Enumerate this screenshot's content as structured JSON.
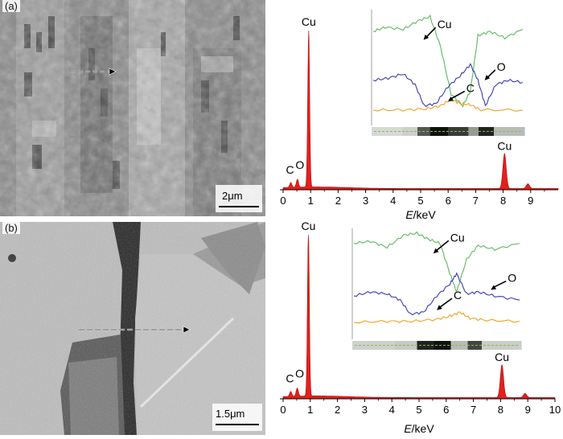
{
  "panels": [
    {
      "label": "(a)",
      "scale_bar": "2μm",
      "chart_data": {
        "type": "area",
        "xlabel": "E/keV",
        "xlim": [
          0,
          10
        ],
        "x_ticks": [
          "0",
          "1",
          "2",
          "3",
          "4",
          "5",
          "6",
          "7",
          "8",
          "9"
        ],
        "series": [
          {
            "peaks": [
              {
                "x": 0.28,
                "height": 0.03
              },
              {
                "x": 0.52,
                "height": 0.05
              },
              {
                "x": 0.93,
                "height": 1.0
              },
              {
                "x": 8.05,
                "height": 0.22
              },
              {
                "x": 8.9,
                "height": 0.03
              }
            ]
          }
        ],
        "peak_labels": [
          {
            "text": "Cu",
            "x": 0.93
          },
          {
            "text": "C",
            "x": 0.28
          },
          {
            "text": "O",
            "x": 0.52
          },
          {
            "text": "Cu",
            "x": 8.05
          }
        ],
        "inset": {
          "lines": [
            {
              "color": "#5cb85c",
              "element": "Cu"
            },
            {
              "color": "#3a3ab0",
              "element": "O"
            },
            {
              "color": "#f0a020",
              "element": "C"
            }
          ],
          "labels": [
            "Cu",
            "O",
            "C"
          ]
        }
      }
    },
    {
      "label": "(b)",
      "scale_bar": "1.5μm",
      "chart_data": {
        "type": "area",
        "xlabel": "E/keV",
        "xlim": [
          0,
          10
        ],
        "x_ticks": [
          "0",
          "1",
          "2",
          "3",
          "4",
          "5",
          "6",
          "7",
          "8",
          "9",
          "10"
        ],
        "series": [
          {
            "peaks": [
              {
                "x": 0.28,
                "height": 0.03
              },
              {
                "x": 0.52,
                "height": 0.05
              },
              {
                "x": 0.93,
                "height": 1.0
              },
              {
                "x": 8.05,
                "height": 0.2
              },
              {
                "x": 8.9,
                "height": 0.025
              }
            ]
          }
        ],
        "peak_labels": [
          {
            "text": "Cu",
            "x": 0.93
          },
          {
            "text": "C",
            "x": 0.28
          },
          {
            "text": "O",
            "x": 0.52
          },
          {
            "text": "Cu",
            "x": 8.05
          }
        ],
        "inset": {
          "lines": [
            {
              "color": "#5cb85c",
              "element": "Cu"
            },
            {
              "color": "#3a3ab0",
              "element": "O"
            },
            {
              "color": "#f0a020",
              "element": "C"
            }
          ],
          "labels": [
            "Cu",
            "O",
            "C"
          ]
        }
      }
    }
  ],
  "colors": {
    "spectrum_fill": "#e3201b",
    "axis": "#000000"
  }
}
